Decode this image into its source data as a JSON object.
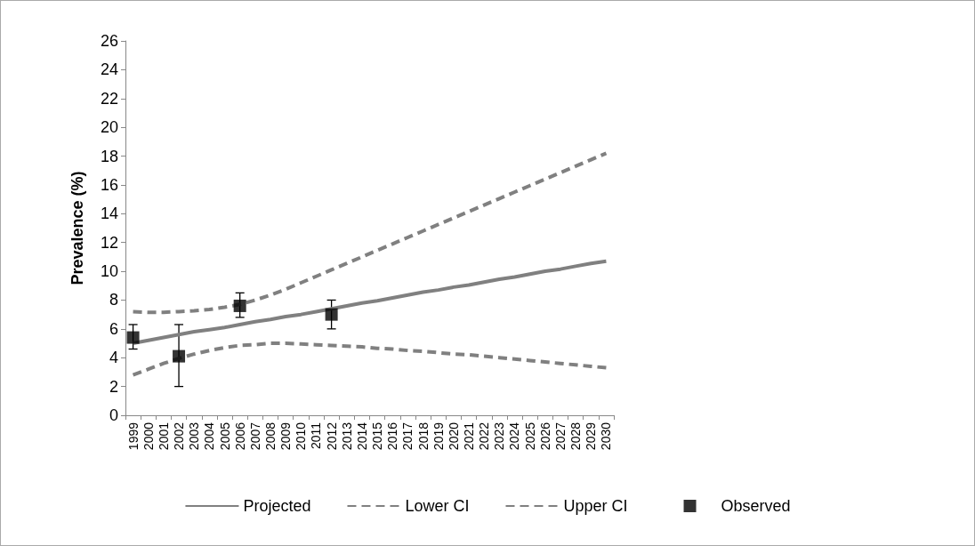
{
  "chart_data": {
    "type": "line",
    "ylabel": "Prevalence (%)",
    "categories": [
      "1999",
      "2000",
      "2001",
      "2002",
      "2003",
      "2004",
      "2005",
      "2006",
      "2007",
      "2008",
      "2009",
      "2010",
      "2011",
      "2012",
      "2013",
      "2014",
      "2015",
      "2016",
      "2017",
      "2018",
      "2019",
      "2020",
      "2021",
      "2022",
      "2023",
      "2024",
      "2025",
      "2026",
      "2027",
      "2028",
      "2029",
      "2030"
    ],
    "ylim": [
      0,
      26
    ],
    "yticks": [
      0,
      2,
      4,
      6,
      8,
      10,
      12,
      14,
      16,
      18,
      20,
      22,
      24,
      26
    ],
    "grid": false,
    "legend": "bottom",
    "series": [
      {
        "name": "Projected",
        "color": "#808080",
        "line_style": "solid",
        "marker": "none",
        "values": [
          5.0,
          5.2,
          5.4,
          5.6,
          5.8,
          5.95,
          6.1,
          6.3,
          6.5,
          6.65,
          6.85,
          7.0,
          7.2,
          7.4,
          7.6,
          7.8,
          7.95,
          8.15,
          8.35,
          8.55,
          8.7,
          8.9,
          9.05,
          9.25,
          9.45,
          9.6,
          9.8,
          10.0,
          10.15,
          10.35,
          10.55,
          10.7
        ]
      },
      {
        "name": "Lower CI",
        "color": "#808080",
        "line_style": "dashed",
        "marker": "none",
        "values": [
          2.8,
          3.2,
          3.6,
          3.95,
          4.25,
          4.5,
          4.7,
          4.85,
          4.9,
          5.0,
          5.0,
          4.95,
          4.9,
          4.85,
          4.8,
          4.75,
          4.65,
          4.6,
          4.5,
          4.45,
          4.35,
          4.25,
          4.2,
          4.1,
          4.0,
          3.9,
          3.8,
          3.7,
          3.6,
          3.5,
          3.4,
          3.3
        ]
      },
      {
        "name": "Upper CI",
        "color": "#808080",
        "line_style": "dashed",
        "marker": "none",
        "values": [
          7.2,
          7.15,
          7.15,
          7.2,
          7.25,
          7.35,
          7.5,
          7.7,
          8.0,
          8.35,
          8.75,
          9.2,
          9.65,
          10.1,
          10.55,
          11.0,
          11.45,
          11.9,
          12.35,
          12.8,
          13.25,
          13.7,
          14.15,
          14.6,
          15.05,
          15.5,
          15.95,
          16.4,
          16.85,
          17.3,
          17.75,
          18.2
        ]
      },
      {
        "name": "Observed",
        "type": "scatter",
        "color": "#000000",
        "marker": "square",
        "values": [
          5.4,
          null,
          null,
          4.1,
          null,
          null,
          null,
          7.6,
          null,
          null,
          null,
          null,
          null,
          7.0,
          null,
          null,
          null,
          null,
          null,
          null,
          null,
          null,
          null,
          null,
          null,
          null,
          null,
          null,
          null,
          null,
          null,
          null
        ],
        "errors": [
          [
            4.6,
            6.3
          ],
          null,
          null,
          [
            2.0,
            6.3
          ],
          null,
          null,
          null,
          [
            6.8,
            8.5
          ],
          null,
          null,
          null,
          null,
          null,
          [
            6.0,
            8.0
          ],
          null,
          null,
          null,
          null,
          null,
          null,
          null,
          null,
          null,
          null,
          null,
          null,
          null,
          null,
          null,
          null,
          null,
          null
        ]
      }
    ]
  }
}
